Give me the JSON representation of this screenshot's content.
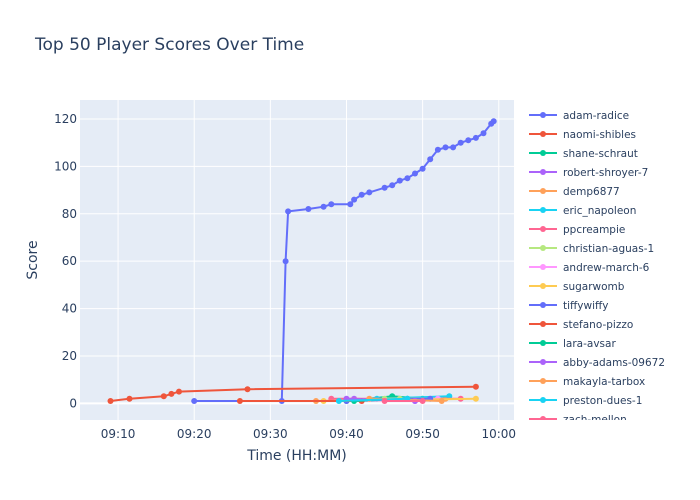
{
  "chart_data": {
    "type": "line",
    "title": "Top 50 Player Scores Over Time",
    "xlabel": "Time (HH:MM)",
    "ylabel": "Score",
    "xlim": [
      "09:05",
      "10:02"
    ],
    "ylim": [
      -7,
      128
    ],
    "x_ticks": [
      "09:10",
      "09:20",
      "09:30",
      "09:40",
      "09:50",
      "10:00"
    ],
    "y_ticks": [
      0,
      20,
      40,
      60,
      80,
      100,
      120
    ],
    "grid": true,
    "legend_position": "right",
    "series": [
      {
        "name": "adam-radice",
        "color": "#636efa",
        "points": [
          [
            "09:20",
            1
          ],
          [
            "09:31:30",
            1
          ],
          [
            "09:32",
            60
          ],
          [
            "09:32:20",
            81
          ],
          [
            "09:35",
            82
          ],
          [
            "09:37",
            83
          ],
          [
            "09:38",
            84
          ],
          [
            "09:40:30",
            84
          ],
          [
            "09:41",
            86
          ],
          [
            "09:42",
            88
          ],
          [
            "09:43",
            89
          ],
          [
            "09:45",
            91
          ],
          [
            "09:46",
            92
          ],
          [
            "09:47",
            94
          ],
          [
            "09:48",
            95
          ],
          [
            "09:49",
            97
          ],
          [
            "09:50",
            99
          ],
          [
            "09:51",
            103
          ],
          [
            "09:52",
            107
          ],
          [
            "09:53",
            108
          ],
          [
            "09:54",
            108
          ],
          [
            "09:55",
            110
          ],
          [
            "09:56",
            111
          ],
          [
            "09:57",
            112
          ],
          [
            "09:58",
            114
          ],
          [
            "09:59",
            118
          ],
          [
            "09:59:20",
            119
          ]
        ]
      },
      {
        "name": "naomi-shibles",
        "color": "#ef553b",
        "points": [
          [
            "09:09",
            1
          ],
          [
            "09:11:30",
            2
          ],
          [
            "09:16",
            3
          ],
          [
            "09:17",
            4
          ],
          [
            "09:18",
            5
          ],
          [
            "09:27",
            6
          ],
          [
            "09:57",
            7
          ]
        ]
      },
      {
        "name": "shane-schraut",
        "color": "#00cc96",
        "points": [
          [
            "09:40",
            1
          ],
          [
            "09:46",
            3
          ],
          [
            "09:50",
            2
          ]
        ]
      },
      {
        "name": "robert-shroyer-7",
        "color": "#ab63fa",
        "points": [
          [
            "09:41",
            2
          ],
          [
            "09:49",
            1
          ]
        ]
      },
      {
        "name": "demp6877",
        "color": "#ffa15a",
        "points": [
          [
            "09:36",
            1
          ],
          [
            "09:53",
            2
          ]
        ]
      },
      {
        "name": "eric_napoleon",
        "color": "#19d3f3",
        "points": [
          [
            "09:44",
            2
          ],
          [
            "09:53:30",
            3
          ]
        ]
      },
      {
        "name": "ppcreampie",
        "color": "#ff6692",
        "points": [
          [
            "09:38",
            2
          ],
          [
            "09:55",
            2
          ]
        ]
      },
      {
        "name": "christian-aguas-1",
        "color": "#b6e880",
        "points": [
          [
            "09:45",
            2
          ],
          [
            "09:47",
            2
          ]
        ]
      },
      {
        "name": "andrew-march-6",
        "color": "#ff97ff",
        "points": [
          [
            "09:42",
            1
          ],
          [
            "09:52",
            2
          ]
        ]
      },
      {
        "name": "sugarwomb",
        "color": "#fecb52",
        "points": [
          [
            "09:37",
            1
          ],
          [
            "09:57",
            2
          ]
        ]
      },
      {
        "name": "tiffywiffy",
        "color": "#636efa",
        "points": [
          [
            "09:40",
            1
          ],
          [
            "09:51",
            2
          ]
        ]
      },
      {
        "name": "stefano-pizzo",
        "color": "#ef553b",
        "points": [
          [
            "09:26",
            1
          ],
          [
            "09:42",
            1
          ]
        ]
      },
      {
        "name": "lara-avsar",
        "color": "#00cc96",
        "points": [
          [
            "09:41",
            1
          ],
          [
            "09:48",
            2
          ]
        ]
      },
      {
        "name": "abby-adams-09672",
        "color": "#ab63fa",
        "points": [
          [
            "09:40",
            2
          ],
          [
            "09:49",
            1
          ]
        ]
      },
      {
        "name": "makayla-tarbox",
        "color": "#ffa15a",
        "points": [
          [
            "09:43",
            2
          ],
          [
            "09:52:30",
            1
          ]
        ]
      },
      {
        "name": "preston-dues-1",
        "color": "#19d3f3",
        "points": [
          [
            "09:39",
            1
          ],
          [
            "09:48",
            2
          ]
        ]
      },
      {
        "name": "zach-mellon",
        "color": "#ff6692",
        "points": [
          [
            "09:45",
            1
          ],
          [
            "09:50",
            1
          ]
        ]
      }
    ]
  }
}
